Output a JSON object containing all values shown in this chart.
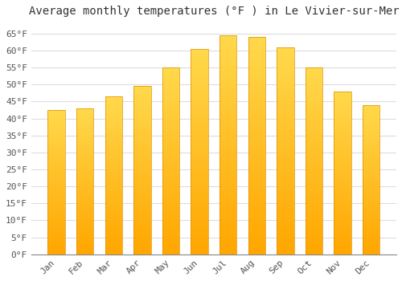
{
  "title": "Average monthly temperatures (°F ) in Le Vivier-sur-Mer",
  "months": [
    "Jan",
    "Feb",
    "Mar",
    "Apr",
    "May",
    "Jun",
    "Jul",
    "Aug",
    "Sep",
    "Oct",
    "Nov",
    "Dec"
  ],
  "values": [
    42.5,
    43.0,
    46.5,
    49.5,
    55.0,
    60.5,
    64.5,
    64.0,
    61.0,
    55.0,
    48.0,
    44.0
  ],
  "bar_color_top": "#FFD966",
  "bar_color_bottom": "#FFA500",
  "bar_edge_color": "#E09000",
  "background_color": "#ffffff",
  "plot_bg_color": "#ffffff",
  "grid_color": "#dddddd",
  "ylim": [
    0,
    68
  ],
  "yticks": [
    0,
    5,
    10,
    15,
    20,
    25,
    30,
    35,
    40,
    45,
    50,
    55,
    60,
    65
  ],
  "title_fontsize": 10,
  "tick_fontsize": 8,
  "font_family": "monospace"
}
